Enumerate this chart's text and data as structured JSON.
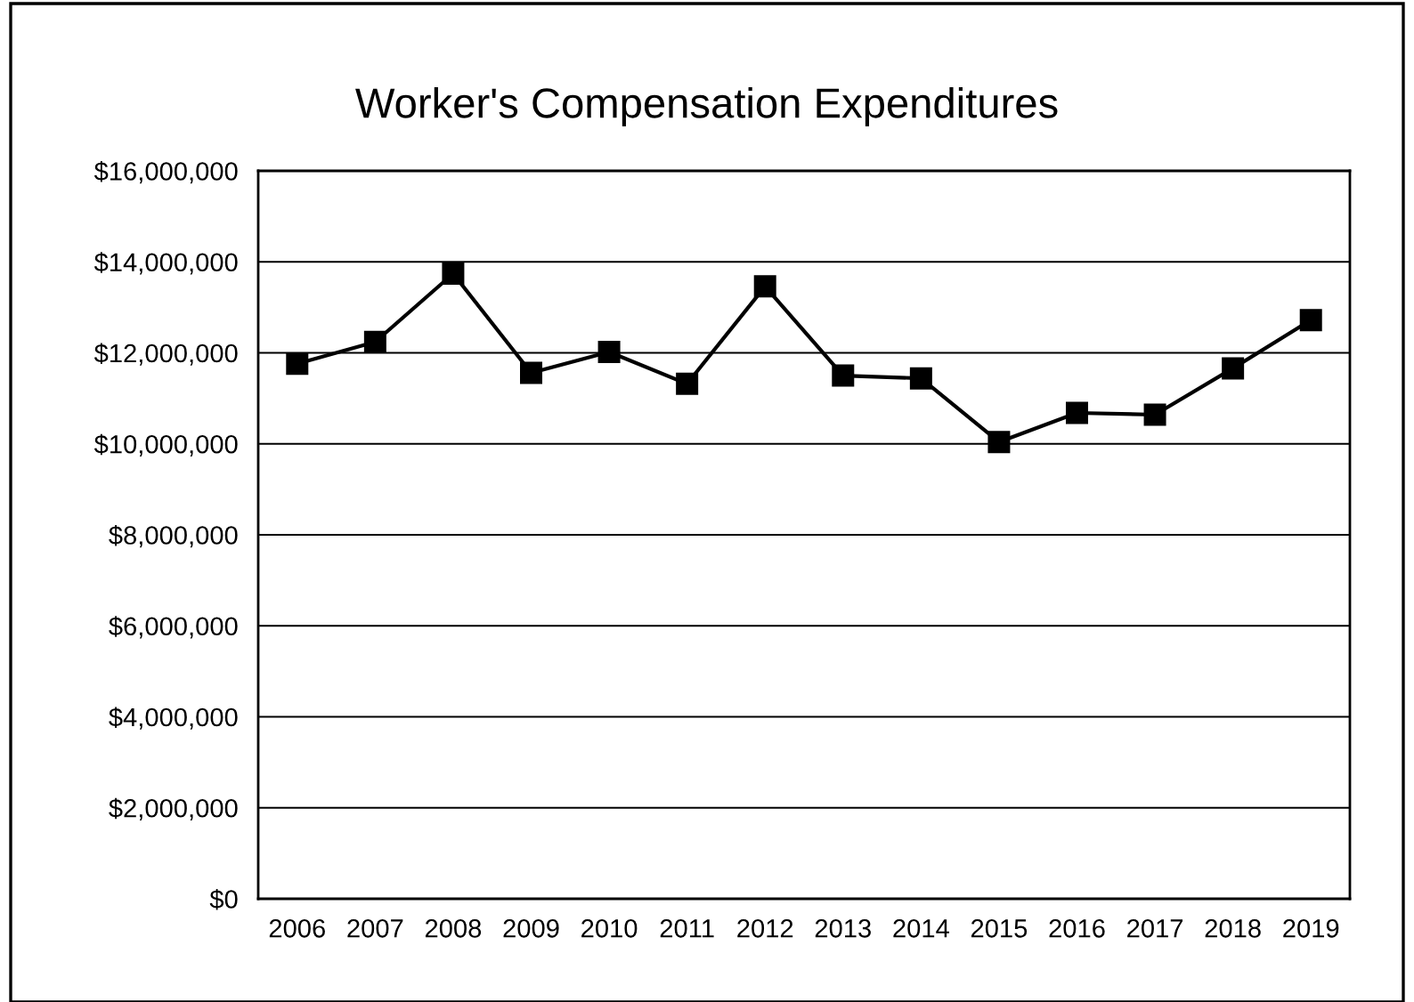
{
  "chart_data": {
    "type": "line",
    "title": "Worker's Compensation Expenditures",
    "categories": [
      "2006",
      "2007",
      "2008",
      "2009",
      "2010",
      "2011",
      "2012",
      "2013",
      "2014",
      "2015",
      "2016",
      "2017",
      "2018",
      "2019"
    ],
    "series": [
      {
        "color": "#000000",
        "values": [
          11760000,
          12240000,
          13740000,
          11560000,
          12020000,
          11320000,
          13460000,
          11500000,
          11440000,
          10040000,
          10680000,
          10640000,
          11660000,
          12720000
        ]
      }
    ],
    "ylim": [
      0,
      16000000
    ],
    "yticks": [
      {
        "value": 0,
        "label": "$0"
      },
      {
        "value": 2000000,
        "label": "$2,000,000"
      },
      {
        "value": 4000000,
        "label": "$4,000,000"
      },
      {
        "value": 6000000,
        "label": "$6,000,000"
      },
      {
        "value": 8000000,
        "label": "$8,000,000"
      },
      {
        "value": 10000000,
        "label": "$10,000,000"
      },
      {
        "value": 12000000,
        "label": "$12,000,000"
      },
      {
        "value": 14000000,
        "label": "$14,000,000"
      },
      {
        "value": 16000000,
        "label": "$16,000,000"
      }
    ],
    "grid": "y",
    "marker": "square",
    "line_style": "solid",
    "legend": false
  }
}
